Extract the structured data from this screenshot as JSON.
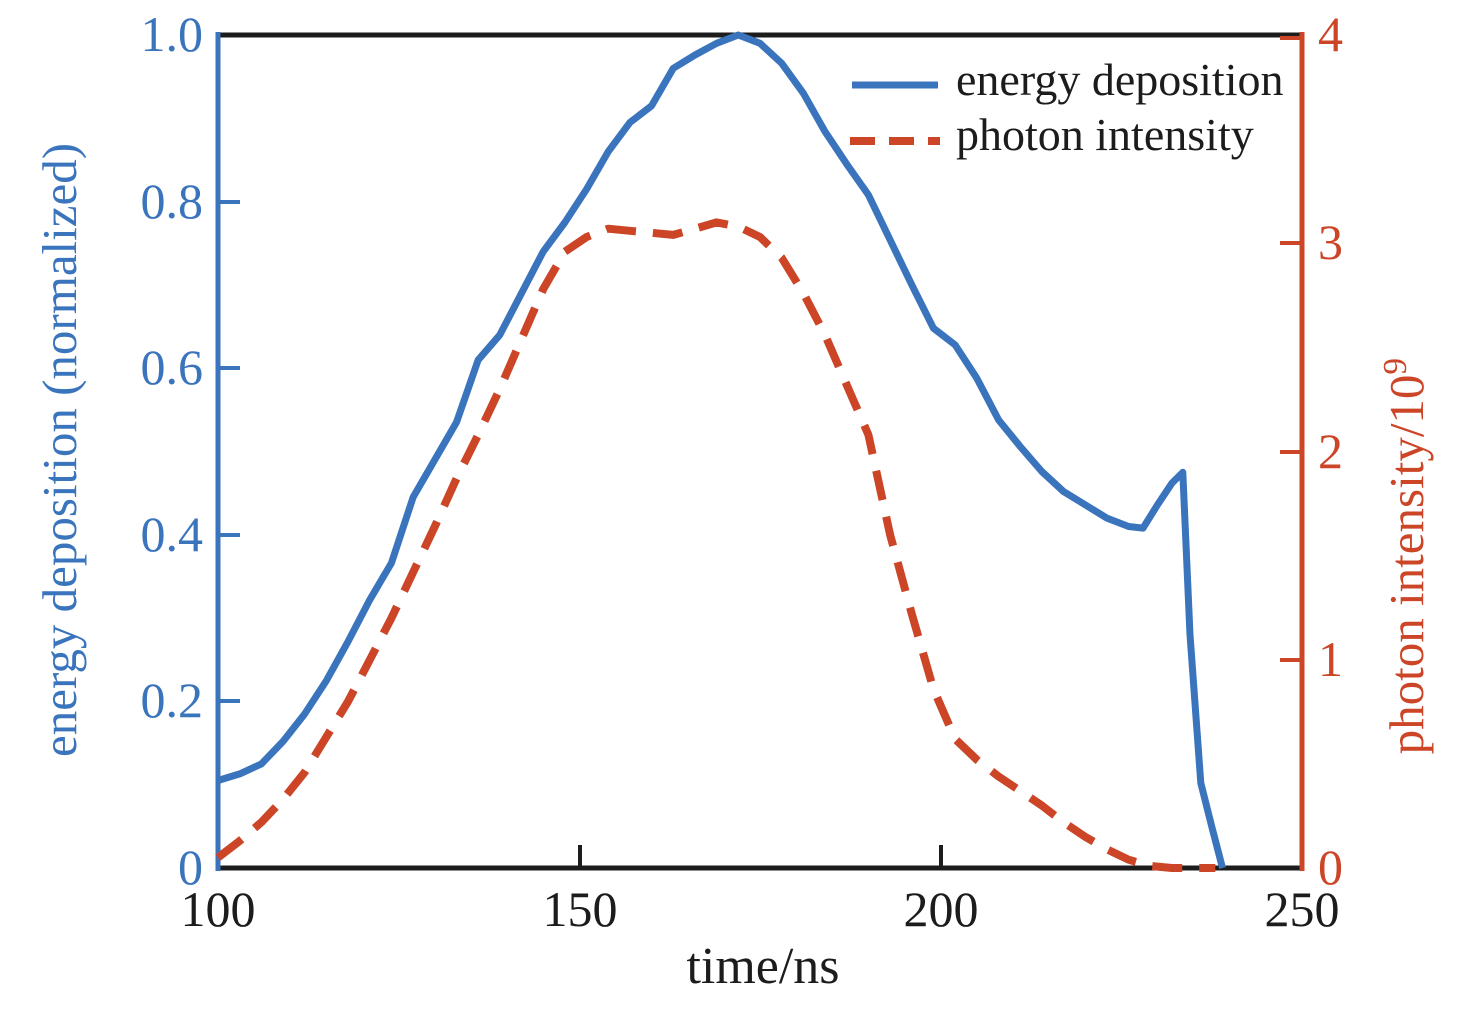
{
  "palette": {
    "blue": "#3a74bc",
    "red": "#cc4527",
    "black": "#1c1c1c",
    "background": "#ffffff"
  },
  "axes": {
    "x": {
      "label": "time/ns",
      "tick_labels": [
        "100",
        "150",
        "200",
        "250"
      ]
    },
    "left": {
      "label": "energy deposition (normalized)",
      "tick_labels": [
        "1.0",
        "0.8",
        "0.6",
        "0.4",
        "0.2",
        "0"
      ],
      "color": "#3a74bc"
    },
    "right": {
      "label_base": "photon intensity/10",
      "label_sup": "9",
      "tick_labels": [
        "4",
        "3",
        "2",
        "1",
        "0"
      ],
      "color": "#cc4527"
    }
  },
  "legend": {
    "items": [
      {
        "label": "energy deposition",
        "style": "solid",
        "color": "#3a74bc"
      },
      {
        "label": "photon intensity",
        "style": "dashed",
        "color": "#cc4527"
      }
    ]
  },
  "chart_data": {
    "type": "line",
    "title": "",
    "xlabel": "time/ns",
    "ylabel_left": "energy deposition (normalized)",
    "ylabel_right": "photon intensity/10⁹",
    "xlim": [
      100,
      250
    ],
    "ylim_left": [
      0,
      1.0
    ],
    "ylim_right": [
      0,
      4
    ],
    "x_ticks": [
      100,
      150,
      200,
      250
    ],
    "left_ticks": [
      0,
      0.2,
      0.4,
      0.6,
      0.8,
      1.0
    ],
    "right_ticks": [
      0,
      1,
      2,
      3,
      4
    ],
    "grid": false,
    "legend_position": "upper right inside",
    "series": [
      {
        "name": "energy deposition",
        "axis": "left",
        "style": "solid",
        "color": "#3a74bc",
        "x": [
          100,
          103,
          106,
          109,
          112,
          115,
          118,
          121,
          124,
          127,
          130,
          133,
          136,
          139,
          142,
          145,
          148,
          151,
          154,
          157,
          160,
          163,
          166,
          169,
          172,
          175,
          178,
          181,
          184,
          187,
          190,
          193,
          196,
          199,
          202,
          205,
          208,
          211,
          214,
          217,
          220,
          223,
          226,
          228,
          230,
          232,
          233.5,
          234.5,
          236,
          237.5,
          239
        ],
        "y": [
          0.105,
          0.113,
          0.125,
          0.152,
          0.185,
          0.225,
          0.272,
          0.322,
          0.366,
          0.445,
          0.49,
          0.535,
          0.61,
          0.64,
          0.69,
          0.74,
          0.775,
          0.815,
          0.86,
          0.895,
          0.915,
          0.96,
          0.976,
          0.99,
          1.0,
          0.99,
          0.966,
          0.93,
          0.884,
          0.845,
          0.808,
          0.754,
          0.7,
          0.648,
          0.628,
          0.588,
          0.538,
          0.506,
          0.476,
          0.452,
          0.436,
          0.42,
          0.41,
          0.408,
          0.436,
          0.462,
          0.475,
          0.28,
          0.102,
          0.05,
          0.0
        ]
      },
      {
        "name": "photon intensity",
        "axis": "right",
        "style": "dashed",
        "color": "#cc4527",
        "x": [
          100,
          103,
          106,
          109,
          112,
          115,
          118,
          121,
          124,
          127,
          130,
          133,
          136,
          139,
          142,
          145,
          148,
          151,
          154,
          157,
          160,
          163,
          166,
          169,
          172,
          175,
          178,
          181,
          184,
          187,
          190,
          193,
          196,
          199,
          202,
          205,
          208,
          211,
          214,
          217,
          220,
          223,
          226,
          229,
          232,
          235,
          238
        ],
        "y": [
          0.05,
          0.13,
          0.22,
          0.33,
          0.46,
          0.63,
          0.8,
          1.0,
          1.2,
          1.42,
          1.64,
          1.87,
          2.08,
          2.3,
          2.54,
          2.78,
          2.96,
          3.03,
          3.07,
          3.06,
          3.05,
          3.04,
          3.07,
          3.1,
          3.08,
          3.03,
          2.93,
          2.76,
          2.56,
          2.32,
          2.08,
          1.6,
          1.22,
          0.86,
          0.62,
          0.52,
          0.44,
          0.37,
          0.3,
          0.22,
          0.15,
          0.09,
          0.04,
          0.01,
          0.0,
          0.0,
          0.0
        ]
      }
    ]
  }
}
